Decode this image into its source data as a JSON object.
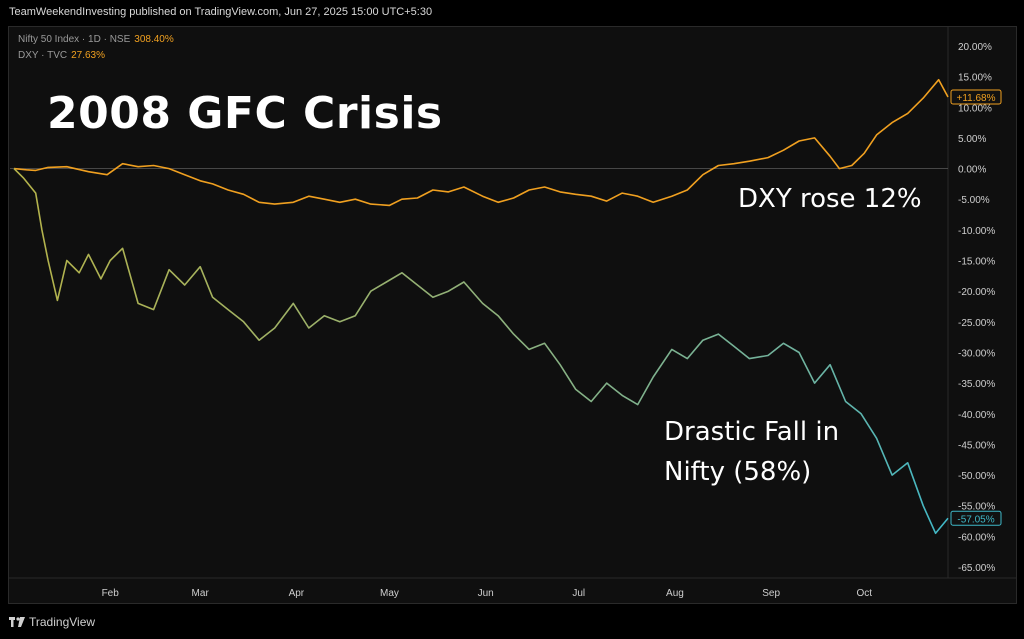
{
  "header": {
    "publisher": "TeamWeekendInvesting published on TradingView.com, Jun 27, 2025 15:00 UTC+5:30"
  },
  "legend": [
    {
      "label": "Nifty 50 Index · 1D · NSE",
      "value": "308.40%"
    },
    {
      "label": "DXY · TVC",
      "value": "27.63%"
    }
  ],
  "title": "2008 GFC Crisis",
  "annotations": {
    "dxy": "DXY rose 12%",
    "nifty_line1": "Drastic Fall in",
    "nifty_line2": "Nifty (58%)"
  },
  "footer": {
    "brand": "TradingView",
    "logo_icon": "tradingview-logo-icon"
  },
  "chart_data": {
    "type": "line",
    "x_range": [
      "2008-01-01",
      "2008-10-28"
    ],
    "ylim": [
      -67,
      22
    ],
    "y_ticks": [
      "20.00%",
      "15.00%",
      "10.00%",
      "5.00%",
      "0.00%",
      "-5.00%",
      "-10.00%",
      "-15.00%",
      "-20.00%",
      "-25.00%",
      "-30.00%",
      "-35.00%",
      "-40.00%",
      "-45.00%",
      "-50.00%",
      "-55.00%",
      "-60.00%",
      "-65.00%"
    ],
    "x_ticks": [
      "Feb",
      "Mar",
      "Apr",
      "May",
      "Jun",
      "Jul",
      "Aug",
      "Sep",
      "Oct"
    ],
    "grid": false,
    "series": [
      {
        "name": "DXY",
        "color": "#f0a020",
        "last_label": "+11.68%",
        "points": [
          [
            "2008-01-01",
            0
          ],
          [
            "2008-01-05",
            -0.2
          ],
          [
            "2008-01-08",
            -0.3
          ],
          [
            "2008-01-12",
            0.2
          ],
          [
            "2008-01-18",
            0.3
          ],
          [
            "2008-01-25",
            -0.5
          ],
          [
            "2008-01-31",
            -1.0
          ],
          [
            "2008-02-05",
            0.8
          ],
          [
            "2008-02-10",
            0.3
          ],
          [
            "2008-02-15",
            0.5
          ],
          [
            "2008-02-20",
            0
          ],
          [
            "2008-02-25",
            -1.0
          ],
          [
            "2008-03-01",
            -2.0
          ],
          [
            "2008-03-05",
            -2.5
          ],
          [
            "2008-03-10",
            -3.5
          ],
          [
            "2008-03-15",
            -4.2
          ],
          [
            "2008-03-20",
            -5.5
          ],
          [
            "2008-03-25",
            -5.8
          ],
          [
            "2008-03-31",
            -5.5
          ],
          [
            "2008-04-05",
            -4.5
          ],
          [
            "2008-04-10",
            -5.0
          ],
          [
            "2008-04-15",
            -5.5
          ],
          [
            "2008-04-20",
            -5.0
          ],
          [
            "2008-04-25",
            -5.8
          ],
          [
            "2008-05-01",
            -6.0
          ],
          [
            "2008-05-05",
            -5.0
          ],
          [
            "2008-05-10",
            -4.8
          ],
          [
            "2008-05-15",
            -3.5
          ],
          [
            "2008-05-20",
            -3.8
          ],
          [
            "2008-05-25",
            -3.0
          ],
          [
            "2008-05-31",
            -4.5
          ],
          [
            "2008-06-05",
            -5.5
          ],
          [
            "2008-06-10",
            -4.8
          ],
          [
            "2008-06-15",
            -3.5
          ],
          [
            "2008-06-20",
            -3.0
          ],
          [
            "2008-06-25",
            -3.8
          ],
          [
            "2008-06-30",
            -4.2
          ],
          [
            "2008-07-05",
            -4.5
          ],
          [
            "2008-07-10",
            -5.3
          ],
          [
            "2008-07-15",
            -4.0
          ],
          [
            "2008-07-20",
            -4.5
          ],
          [
            "2008-07-25",
            -5.5
          ],
          [
            "2008-07-31",
            -4.5
          ],
          [
            "2008-08-05",
            -3.5
          ],
          [
            "2008-08-10",
            -1.0
          ],
          [
            "2008-08-15",
            0.5
          ],
          [
            "2008-08-20",
            0.8
          ],
          [
            "2008-08-25",
            1.2
          ],
          [
            "2008-08-31",
            1.8
          ],
          [
            "2008-09-05",
            3.0
          ],
          [
            "2008-09-10",
            4.5
          ],
          [
            "2008-09-15",
            5.0
          ],
          [
            "2008-09-20",
            2.0
          ],
          [
            "2008-09-23",
            0
          ],
          [
            "2008-09-27",
            0.5
          ],
          [
            "2008-10-01",
            2.5
          ],
          [
            "2008-10-05",
            5.5
          ],
          [
            "2008-10-10",
            7.5
          ],
          [
            "2008-10-15",
            9.0
          ],
          [
            "2008-10-20",
            11.5
          ],
          [
            "2008-10-25",
            14.5
          ],
          [
            "2008-10-28",
            11.68
          ]
        ]
      },
      {
        "name": "Nifty",
        "color": "#8fb07a",
        "last_label": "-57.05%",
        "points": [
          [
            "2008-01-01",
            0
          ],
          [
            "2008-01-04",
            -1.5
          ],
          [
            "2008-01-08",
            -4.0
          ],
          [
            "2008-01-10",
            -10.0
          ],
          [
            "2008-01-12",
            -15.0
          ],
          [
            "2008-01-15",
            -21.5
          ],
          [
            "2008-01-18",
            -15.0
          ],
          [
            "2008-01-22",
            -17.0
          ],
          [
            "2008-01-25",
            -14.0
          ],
          [
            "2008-01-29",
            -18.0
          ],
          [
            "2008-02-01",
            -15.0
          ],
          [
            "2008-02-05",
            -13.0
          ],
          [
            "2008-02-10",
            -22.0
          ],
          [
            "2008-02-15",
            -23.0
          ],
          [
            "2008-02-20",
            -16.5
          ],
          [
            "2008-02-25",
            -19.0
          ],
          [
            "2008-03-01",
            -16.0
          ],
          [
            "2008-03-05",
            -21.0
          ],
          [
            "2008-03-10",
            -23.0
          ],
          [
            "2008-03-15",
            -25.0
          ],
          [
            "2008-03-20",
            -28.0
          ],
          [
            "2008-03-25",
            -26.0
          ],
          [
            "2008-03-31",
            -22.0
          ],
          [
            "2008-04-05",
            -26.0
          ],
          [
            "2008-04-10",
            -24.0
          ],
          [
            "2008-04-15",
            -25.0
          ],
          [
            "2008-04-20",
            -24.0
          ],
          [
            "2008-04-25",
            -20.0
          ],
          [
            "2008-04-30",
            -18.5
          ],
          [
            "2008-05-05",
            -17.0
          ],
          [
            "2008-05-10",
            -19.0
          ],
          [
            "2008-05-15",
            -21.0
          ],
          [
            "2008-05-20",
            -20.0
          ],
          [
            "2008-05-25",
            -18.5
          ],
          [
            "2008-05-31",
            -22.0
          ],
          [
            "2008-06-05",
            -24.0
          ],
          [
            "2008-06-10",
            -27.0
          ],
          [
            "2008-06-15",
            -29.5
          ],
          [
            "2008-06-20",
            -28.5
          ],
          [
            "2008-06-25",
            -32.0
          ],
          [
            "2008-06-30",
            -36.0
          ],
          [
            "2008-07-05",
            -38.0
          ],
          [
            "2008-07-10",
            -35.0
          ],
          [
            "2008-07-15",
            -37.0
          ],
          [
            "2008-07-20",
            -38.5
          ],
          [
            "2008-07-25",
            -34.0
          ],
          [
            "2008-07-31",
            -29.5
          ],
          [
            "2008-08-05",
            -31.0
          ],
          [
            "2008-08-10",
            -28.0
          ],
          [
            "2008-08-15",
            -27.0
          ],
          [
            "2008-08-20",
            -29.0
          ],
          [
            "2008-08-25",
            -31.0
          ],
          [
            "2008-08-31",
            -30.5
          ],
          [
            "2008-09-05",
            -28.5
          ],
          [
            "2008-09-10",
            -30.0
          ],
          [
            "2008-09-15",
            -35.0
          ],
          [
            "2008-09-20",
            -32.0
          ],
          [
            "2008-09-25",
            -38.0
          ],
          [
            "2008-09-30",
            -40.0
          ],
          [
            "2008-10-05",
            -44.0
          ],
          [
            "2008-10-10",
            -50.0
          ],
          [
            "2008-10-15",
            -48.0
          ],
          [
            "2008-10-20",
            -55.0
          ],
          [
            "2008-10-24",
            -59.5
          ],
          [
            "2008-10-28",
            -57.05
          ]
        ]
      }
    ]
  }
}
